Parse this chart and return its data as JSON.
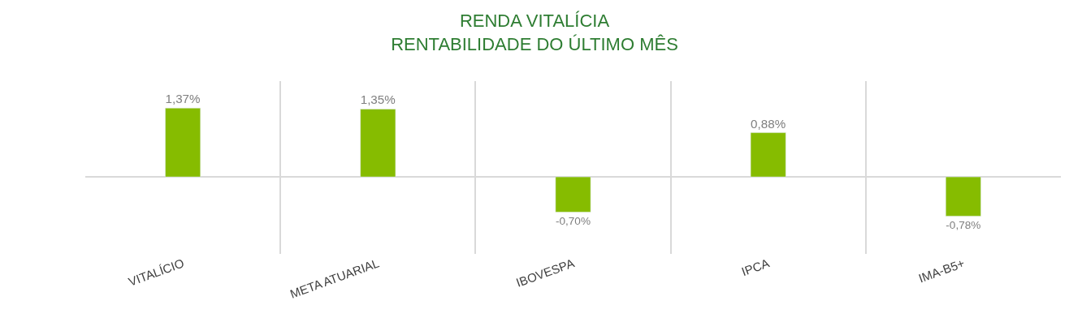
{
  "chart_data": {
    "type": "bar",
    "title": "RENDA VITALÍCIA\nRENTABILIDADE DO ÚLTIMO MÊS",
    "categories": [
      "VITALÍCIO",
      "META ATUARIAL",
      "IBOVESPA",
      "IPCA",
      "IMA-B5+"
    ],
    "values": [
      1.37,
      1.35,
      -0.7,
      0.88,
      -0.78
    ],
    "value_labels": [
      "1,37%",
      "1,35%",
      "-0,70%",
      "0,88%",
      "-0,78%"
    ],
    "color": "#86bc00",
    "grid": "x",
    "legend": false
  }
}
